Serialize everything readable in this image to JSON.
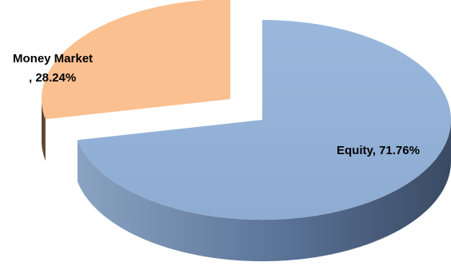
{
  "chart_data": {
    "type": "pie",
    "style": "3d-exploded",
    "title": "",
    "categories": [
      "Equity",
      "Money Market"
    ],
    "values": [
      71.76,
      28.24
    ],
    "labels": [
      {
        "lines": [
          "Equity, 71.76%"
        ]
      },
      {
        "lines": [
          "Money Market",
          ", 28.24%"
        ]
      }
    ],
    "colors": {
      "Equity": {
        "top": "#95b3d7",
        "side": "#4f6b8f"
      },
      "Money Market": {
        "top": "#fac090",
        "side": "#5e4634"
      }
    },
    "exploded": "Money Market",
    "legend": "none"
  }
}
